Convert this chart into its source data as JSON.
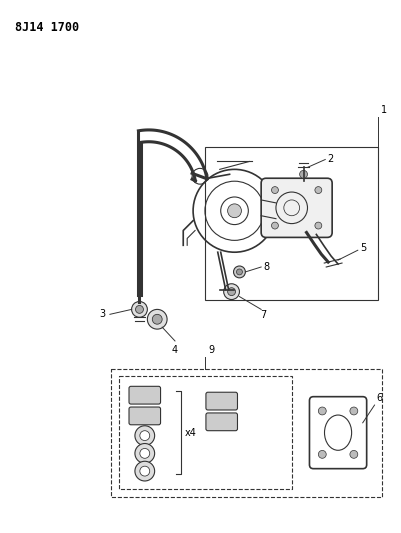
{
  "title": "8J14 1700",
  "background_color": "#ffffff",
  "title_fontsize": 8.5,
  "label_fontsize": 7,
  "fig_width": 4.01,
  "fig_height": 5.33,
  "dpi": 100
}
